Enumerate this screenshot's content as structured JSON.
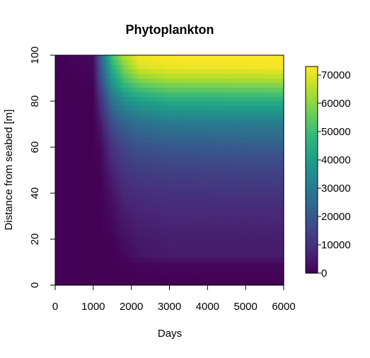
{
  "chart_data": {
    "type": "heatmap",
    "title": "Phytoplankton",
    "xlabel": "Days",
    "ylabel": "Distance from seabed [m]",
    "xlim": [
      0,
      6000
    ],
    "ylim": [
      0,
      100
    ],
    "x_ticks": [
      0,
      1000,
      2000,
      3000,
      4000,
      5000,
      6000
    ],
    "y_ticks": [
      0,
      20,
      40,
      60,
      80,
      100
    ],
    "colorbar": {
      "range": [
        0,
        73000
      ],
      "ticks": [
        0,
        10000,
        20000,
        30000,
        40000,
        50000,
        60000,
        70000
      ],
      "colormap": [
        "#440154",
        "#482878",
        "#3e4989",
        "#31688e",
        "#26828e",
        "#1f9e89",
        "#35b779",
        "#6ece58",
        "#b5de2b",
        "#fde725"
      ]
    },
    "profiles": [
      {
        "day": 0,
        "values": [
          [
            0,
            0
          ],
          [
            100,
            0
          ]
        ]
      },
      {
        "day": 1000,
        "values": [
          [
            0,
            0
          ],
          [
            70,
            0
          ],
          [
            85,
            300
          ],
          [
            95,
            1200
          ],
          [
            100,
            2000
          ]
        ]
      },
      {
        "day": 1200,
        "values": [
          [
            0,
            0
          ],
          [
            45,
            200
          ],
          [
            60,
            2000
          ],
          [
            70,
            5000
          ],
          [
            80,
            10000
          ],
          [
            90,
            18000
          ],
          [
            100,
            23000
          ]
        ]
      },
      {
        "day": 1500,
        "values": [
          [
            0,
            0
          ],
          [
            20,
            500
          ],
          [
            30,
            2000
          ],
          [
            40,
            4000
          ],
          [
            50,
            7000
          ],
          [
            60,
            11000
          ],
          [
            70,
            17000
          ],
          [
            80,
            27000
          ],
          [
            90,
            40000
          ],
          [
            100,
            52000
          ]
        ]
      },
      {
        "day": 1800,
        "values": [
          [
            0,
            0
          ],
          [
            10,
            500
          ],
          [
            20,
            3000
          ],
          [
            30,
            5500
          ],
          [
            40,
            8000
          ],
          [
            50,
            11000
          ],
          [
            60,
            15000
          ],
          [
            70,
            22000
          ],
          [
            80,
            35000
          ],
          [
            90,
            52000
          ],
          [
            100,
            64000
          ]
        ]
      },
      {
        "day": 2200,
        "values": [
          [
            0,
            0
          ],
          [
            10,
            1000
          ],
          [
            12,
            4000
          ],
          [
            20,
            5000
          ],
          [
            30,
            7000
          ],
          [
            40,
            9500
          ],
          [
            50,
            13000
          ],
          [
            60,
            18000
          ],
          [
            70,
            26000
          ],
          [
            80,
            40000
          ],
          [
            90,
            60000
          ],
          [
            95,
            69000
          ],
          [
            100,
            72000
          ]
        ]
      },
      {
        "day": 3000,
        "values": [
          [
            0,
            0
          ],
          [
            10,
            1500
          ],
          [
            12,
            5500
          ],
          [
            20,
            6000
          ],
          [
            30,
            8000
          ],
          [
            40,
            10500
          ],
          [
            50,
            14000
          ],
          [
            60,
            20000
          ],
          [
            70,
            29000
          ],
          [
            80,
            44000
          ],
          [
            90,
            64000
          ],
          [
            95,
            71000
          ],
          [
            100,
            73000
          ]
        ]
      },
      {
        "day": 6000,
        "values": [
          [
            0,
            0
          ],
          [
            10,
            1500
          ],
          [
            12,
            5500
          ],
          [
            20,
            6000
          ],
          [
            30,
            8000
          ],
          [
            40,
            11000
          ],
          [
            50,
            15000
          ],
          [
            60,
            21000
          ],
          [
            70,
            30000
          ],
          [
            80,
            45000
          ],
          [
            90,
            65000
          ],
          [
            95,
            72000
          ],
          [
            100,
            73000
          ]
        ]
      }
    ]
  }
}
